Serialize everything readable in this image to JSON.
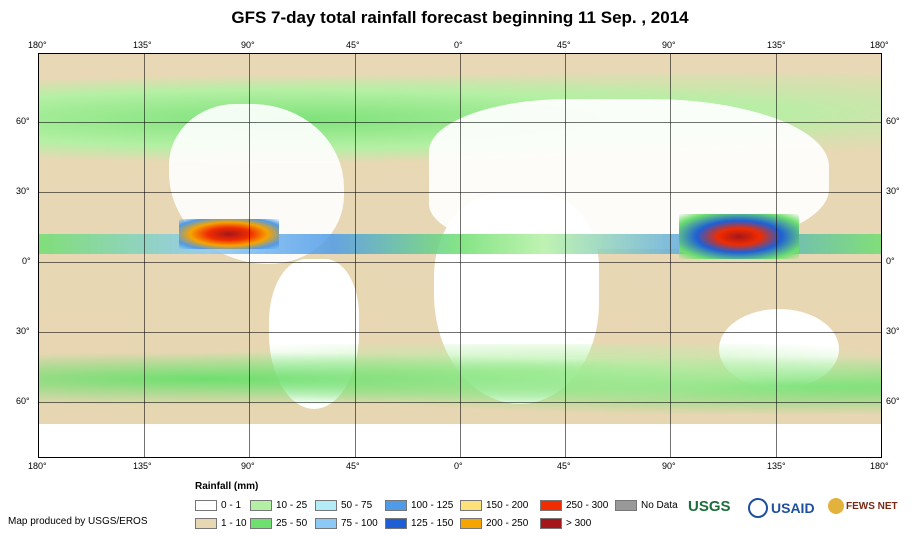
{
  "title": "GFS 7-day total rainfall forecast beginning 11 Sep. , 2014",
  "map": {
    "lon_labels": [
      "180°",
      "135°",
      "90°",
      "45°",
      "0°",
      "45°",
      "90°",
      "135°",
      "180°"
    ],
    "lat_labels": [
      "60°",
      "30°",
      "0°",
      "30°",
      "60°"
    ]
  },
  "legend": {
    "title": "Rainfall (mm)",
    "items": [
      {
        "label": "0 - 1",
        "color": "#ffffff"
      },
      {
        "label": "1 - 10",
        "color": "#e8d7b3"
      },
      {
        "label": "10 - 25",
        "color": "#b4f0a4"
      },
      {
        "label": "25 - 50",
        "color": "#6fdf6f"
      },
      {
        "label": "50 - 75",
        "color": "#b4ecf6"
      },
      {
        "label": "75 - 100",
        "color": "#8ccaf5"
      },
      {
        "label": "100 - 125",
        "color": "#4f9be8"
      },
      {
        "label": "125 - 150",
        "color": "#1f5fd6"
      },
      {
        "label": "150 - 200",
        "color": "#fde27a"
      },
      {
        "label": "200 - 250",
        "color": "#f6a400"
      },
      {
        "label": "250 - 300",
        "color": "#f02c00"
      },
      {
        "label": "> 300",
        "color": "#a5161a"
      },
      {
        "label": "No Data",
        "color": "#999999"
      }
    ]
  },
  "credit": "Map produced by USGS/EROS",
  "logos": {
    "usgs": "USGS",
    "usaid": "USAID",
    "fews": "FEWS NET"
  }
}
